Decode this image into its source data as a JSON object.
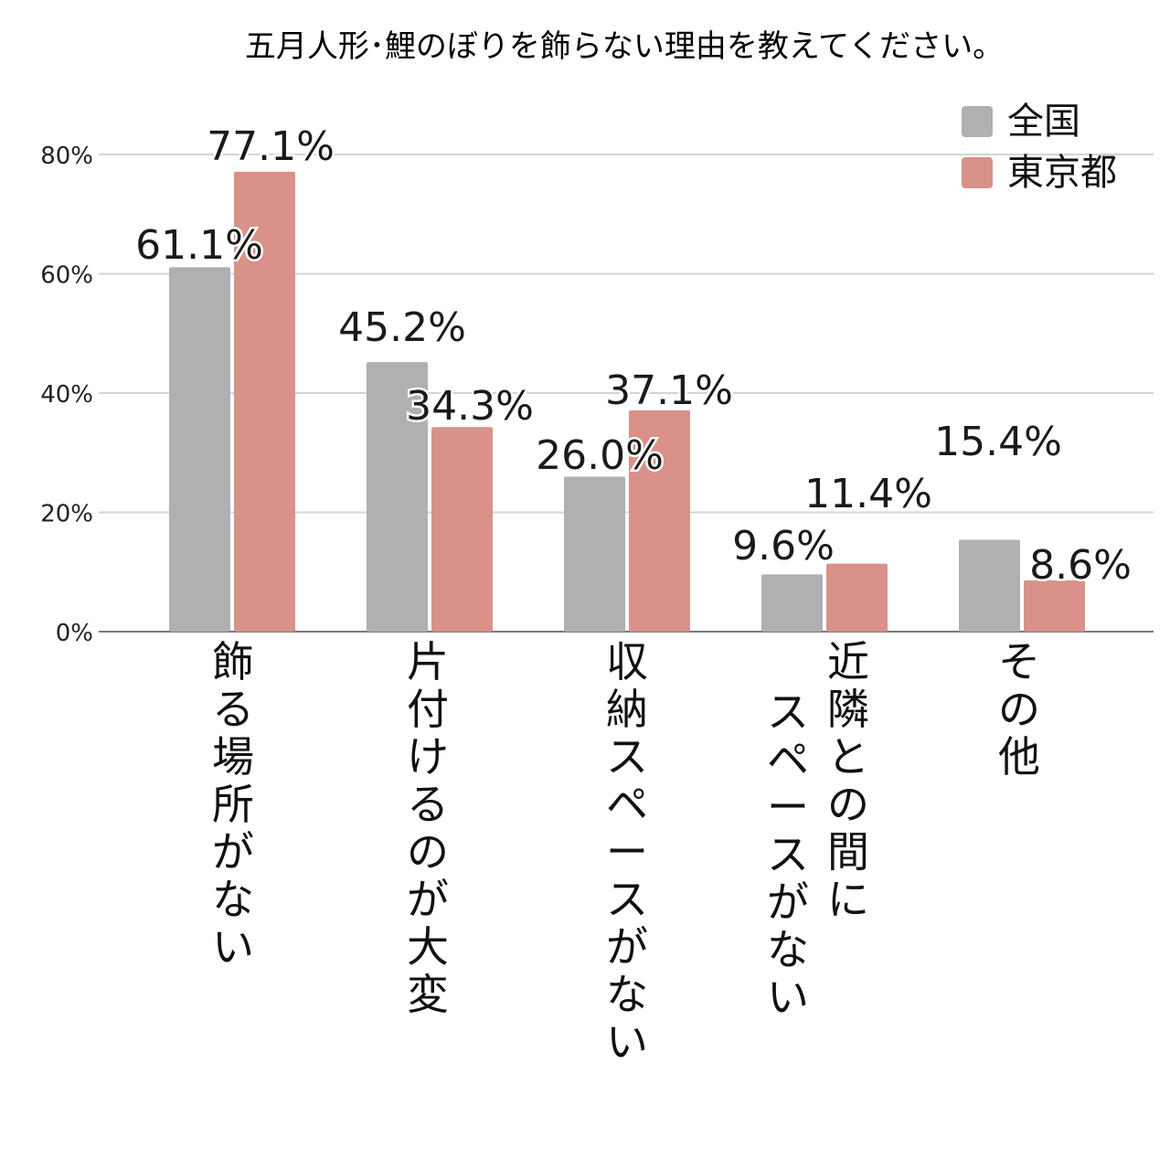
{
  "chart_data": {
    "type": "bar",
    "title": "五月人形･鯉のぼりを飾らない理由を教えてください。",
    "categories": [
      [
        "飾",
        "る",
        "場",
        "所",
        "が",
        "な",
        "い"
      ],
      [
        "片",
        "付",
        "け",
        "る",
        "の",
        "が",
        "大",
        "変"
      ],
      [
        "収",
        "納",
        "ス",
        "ペ",
        "ー",
        "ス",
        "が",
        "な",
        "い"
      ],
      [
        "近",
        "隣",
        "と",
        "の",
        "間",
        "に"
      ],
      [
        "そ",
        "の",
        "他"
      ]
    ],
    "category_line2": [
      null,
      null,
      null,
      [
        "ス",
        "ペ",
        "ー",
        "ス",
        "が",
        "な",
        "い"
      ],
      null
    ],
    "series": [
      {
        "name": "全国",
        "color": "#b0b0b0",
        "values": [
          61.1,
          45.2,
          26.0,
          9.6,
          15.4
        ],
        "labels": [
          "61.1%",
          "45.2%",
          "26.0%",
          "9.6%",
          "15.4%"
        ]
      },
      {
        "name": "東京都",
        "color": "#d9918a",
        "values": [
          77.1,
          34.3,
          37.1,
          11.4,
          8.6
        ],
        "labels": [
          "77.1%",
          "34.3%",
          "37.1%",
          "11.4%",
          "8.6%"
        ]
      }
    ],
    "yticks": [
      "0%",
      "20%",
      "40%",
      "60%",
      "80%"
    ],
    "ytick_values": [
      0,
      20,
      40,
      60,
      80
    ],
    "ylim": [
      0,
      80
    ],
    "grid": true,
    "legend_position": "top-right"
  }
}
